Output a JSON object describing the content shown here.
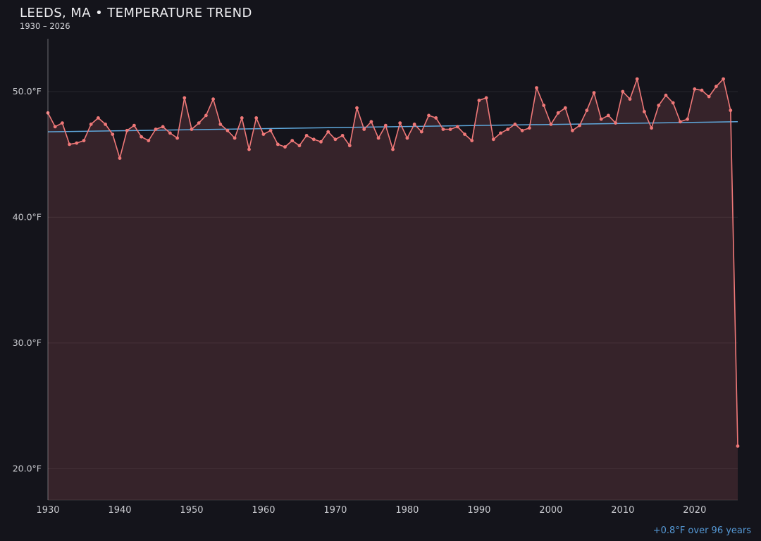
{
  "chart_data": {
    "type": "line",
    "title": "LEEDS, MA • TEMPERATURE TREND",
    "subtitle": "1930 – 2026",
    "series_name": "annual-mean-temperature",
    "years": [
      1930,
      1931,
      1932,
      1933,
      1934,
      1935,
      1936,
      1937,
      1938,
      1939,
      1940,
      1941,
      1942,
      1943,
      1944,
      1945,
      1946,
      1947,
      1948,
      1949,
      1950,
      1951,
      1952,
      1953,
      1954,
      1955,
      1956,
      1957,
      1958,
      1959,
      1960,
      1961,
      1962,
      1963,
      1964,
      1965,
      1966,
      1967,
      1968,
      1969,
      1970,
      1971,
      1972,
      1973,
      1974,
      1975,
      1976,
      1977,
      1978,
      1979,
      1980,
      1981,
      1982,
      1983,
      1984,
      1985,
      1986,
      1987,
      1988,
      1989,
      1990,
      1991,
      1992,
      1993,
      1994,
      1995,
      1996,
      1997,
      1998,
      1999,
      2000,
      2001,
      2002,
      2003,
      2004,
      2005,
      2006,
      2007,
      2008,
      2009,
      2010,
      2011,
      2012,
      2013,
      2014,
      2015,
      2016,
      2017,
      2018,
      2019,
      2020,
      2021,
      2022,
      2023,
      2024,
      2025,
      2026
    ],
    "values": [
      48.3,
      47.2,
      47.5,
      45.8,
      45.9,
      46.1,
      47.4,
      47.9,
      47.4,
      46.6,
      44.7,
      46.9,
      47.3,
      46.4,
      46.1,
      47.0,
      47.2,
      46.7,
      46.3,
      49.5,
      47.0,
      47.5,
      48.1,
      49.4,
      47.4,
      46.9,
      46.3,
      47.9,
      45.4,
      47.9,
      46.6,
      46.9,
      45.8,
      45.6,
      46.1,
      45.7,
      46.5,
      46.2,
      46.0,
      46.8,
      46.2,
      46.5,
      45.7,
      48.7,
      47.0,
      47.6,
      46.3,
      47.3,
      45.4,
      47.5,
      46.3,
      47.4,
      46.8,
      48.1,
      47.9,
      47.0,
      47.0,
      47.2,
      46.6,
      46.1,
      49.3,
      49.5,
      46.2,
      46.7,
      47.0,
      47.4,
      46.9,
      47.1,
      50.3,
      48.9,
      47.4,
      48.3,
      48.7,
      46.9,
      47.3,
      48.5,
      49.9,
      47.8,
      48.1,
      47.5,
      50.0,
      49.4,
      51.0,
      48.4,
      47.1,
      48.9,
      49.7,
      49.1,
      47.6,
      47.8,
      50.2,
      50.1,
      49.6,
      50.4,
      51.0,
      48.5,
      21.8
    ],
    "xlim": [
      1930,
      2026
    ],
    "ylim": [
      17.5,
      54.2
    ],
    "yticks": [
      20,
      30,
      40,
      50
    ],
    "ytick_labels": [
      "20.0°F",
      "30.0°F",
      "40.0°F",
      "50.0°F"
    ],
    "xticks": [
      1930,
      1940,
      1950,
      1960,
      1970,
      1980,
      1990,
      2000,
      2010,
      2020
    ],
    "xtick_labels": [
      "1930",
      "1940",
      "1950",
      "1960",
      "1970",
      "1980",
      "1990",
      "2000",
      "2010",
      "2020"
    ],
    "grid": true,
    "legend": false,
    "trend": {
      "start_year": 1930,
      "start_value": 46.8,
      "end_year": 2026,
      "end_value": 47.6,
      "label": "+0.8°F over 96 years"
    },
    "colors": {
      "background": "#14141b",
      "line": "#ef7878",
      "fill": "rgba(239,120,124,0.16)",
      "trend": "#5fa8dc",
      "annotation": "#5599d6",
      "grid": "rgba(255,255,255,0.08)",
      "spine": "rgba(255,255,255,0.38)",
      "tick": "#c8c9ce",
      "title": "#ededf0"
    }
  }
}
